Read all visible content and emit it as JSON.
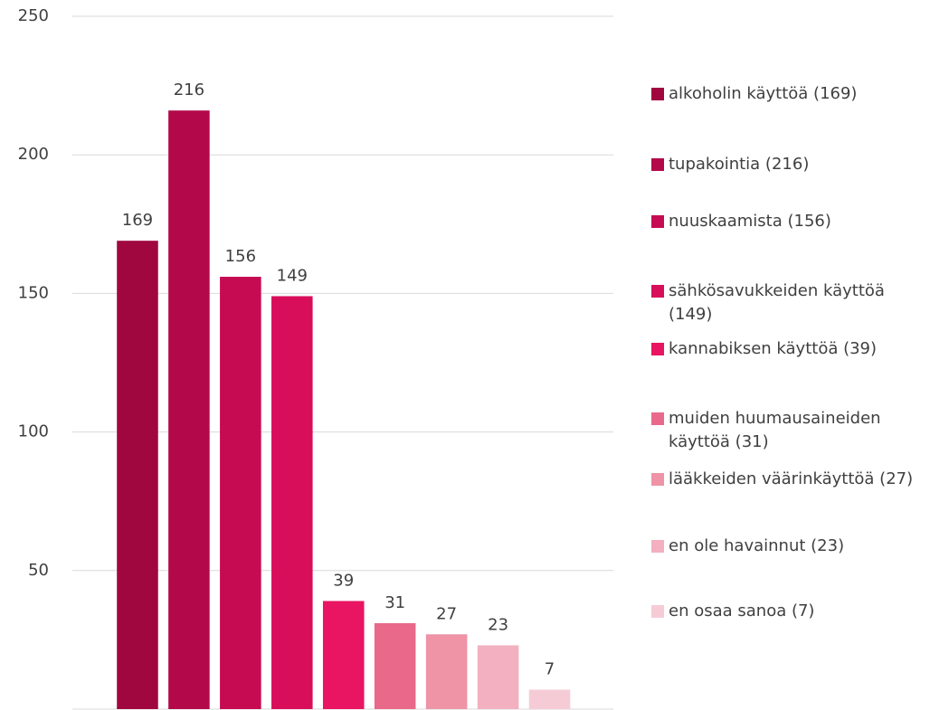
{
  "chart_data": {
    "type": "bar",
    "categories": [
      "alkoholin käyttöä (169)",
      "tupakointia (216)",
      "nuuskaamista (156)",
      "sähkösavukkeiden käyttöä (149)",
      "kannabiksen käyttöä (39)",
      "muiden huumausaineiden käyttöä (31)",
      "lääkkeiden väärinkäyttöä (27)",
      "en ole havainnut (23)",
      "en osaa sanoa (7)"
    ],
    "values": [
      169,
      216,
      156,
      149,
      39,
      31,
      27,
      23,
      7
    ],
    "colors": [
      "#a0073f",
      "#b3094a",
      "#c60b53",
      "#d80e5b",
      "#e91462",
      "#e8698a",
      "#ee94a6",
      "#f2b0c0",
      "#f5ccd6"
    ],
    "ylim": [
      0,
      250
    ],
    "yticks": [
      50,
      100,
      150,
      200,
      250
    ],
    "grid": true,
    "legend": "right"
  }
}
